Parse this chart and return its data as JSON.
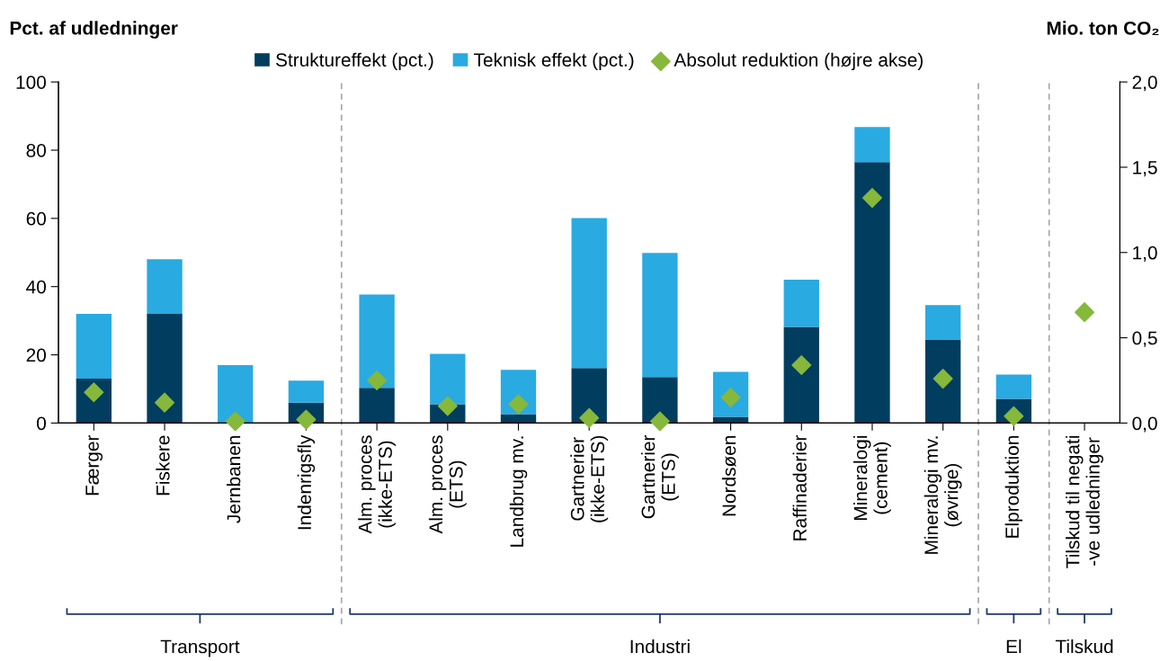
{
  "chart_data": {
    "type": "bar",
    "stacked": true,
    "ylabel": "Pct. af udledninger",
    "y2label": "Mio. ton CO₂",
    "categories": [
      "Færger",
      "Fiskere",
      "Jernbanen",
      "Indenrigsfly",
      "Alm. proces\n(ikke-ETS)",
      "Alm. proces\n(ETS)",
      "Landbrug mv.",
      "Gartnerier\n(ikke-ETS)",
      "Gartnerier\n(ETS)",
      "Nordsøen",
      "Raffinaderier",
      "Mineralogi\n(cement)",
      "Mineralogi mv.\n(øvrige)",
      "Elproduktion",
      "Tilskud til negati\n-ve udledninger"
    ],
    "series": [
      {
        "name": "Struktureffekt (pct.)",
        "color": "#003d5f",
        "values": [
          13,
          32,
          0,
          6,
          10.3,
          5.5,
          2.6,
          16.1,
          13.5,
          1.8,
          28.2,
          76.5,
          24.5,
          7.1,
          null
        ]
      },
      {
        "name": "Teknisk effekt (pct.)",
        "color": "#29aae1",
        "values": [
          19,
          16,
          17,
          6.4,
          27.4,
          14.8,
          13,
          44,
          36.4,
          13.2,
          13.8,
          10.3,
          10.1,
          7.1,
          null
        ]
      },
      {
        "name": "Absolut reduktion (højre akse)",
        "type": "scatter",
        "axis": "y2",
        "marker": "diamond",
        "color": "#86b83c",
        "values": [
          0.18,
          0.12,
          0.01,
          0.02,
          0.25,
          0.1,
          0.11,
          0.03,
          0.01,
          0.15,
          0.34,
          1.32,
          0.26,
          0.04,
          0.65
        ]
      }
    ],
    "ylim": [
      0,
      100
    ],
    "yticks": [
      0,
      20,
      40,
      60,
      80,
      100
    ],
    "y2lim": [
      0,
      2
    ],
    "y2ticks": [
      {
        "value": 0,
        "label": "0,0"
      },
      {
        "value": 0.5,
        "label": "0,5"
      },
      {
        "value": 1,
        "label": "1,0"
      },
      {
        "value": 1.5,
        "label": "1,5"
      },
      {
        "value": 2,
        "label": "2,0"
      }
    ],
    "annotations": [
      "Transport",
      "Industri",
      "El",
      "Tilskud"
    ],
    "legend": "top",
    "grid": false
  }
}
